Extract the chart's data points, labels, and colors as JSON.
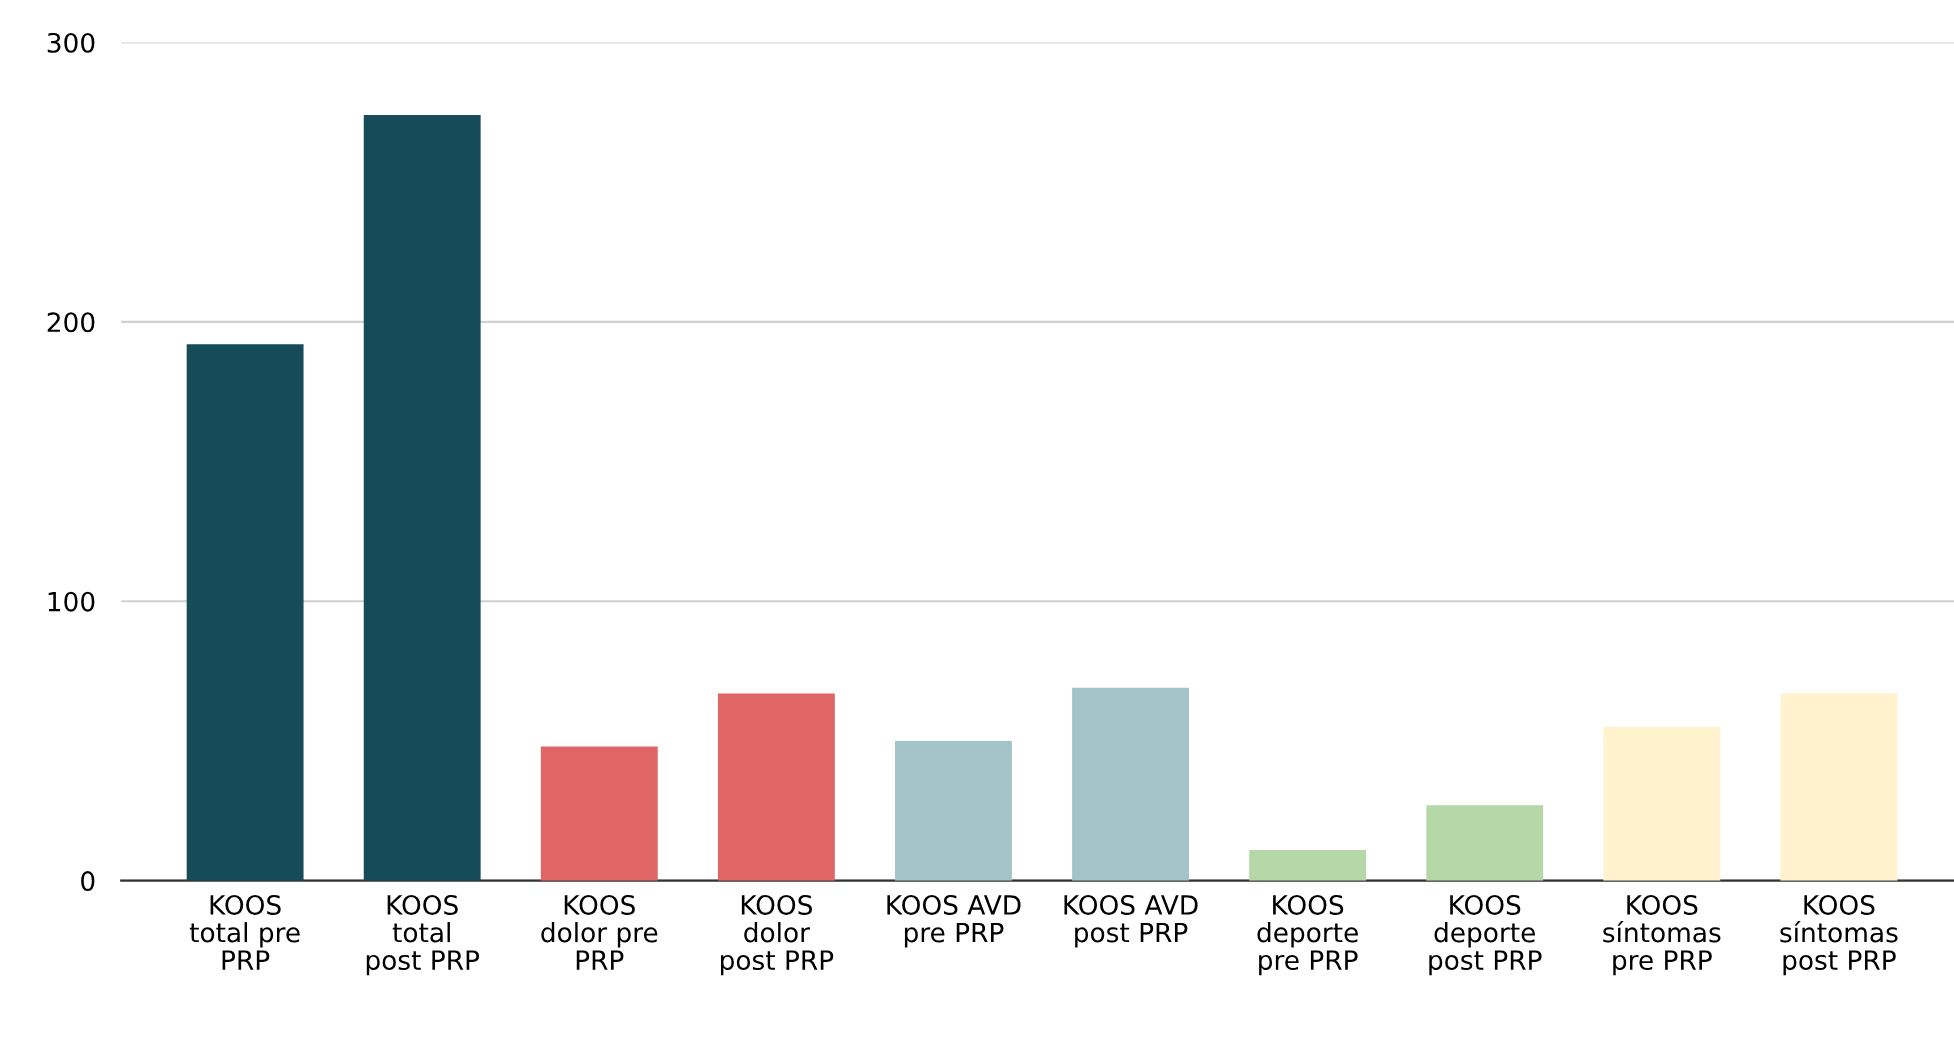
{
  "chart_data": {
    "type": "bar",
    "categories": [
      "KOOS total pre PRP",
      "KOOS total post PRP",
      "KOOS dolor pre PRP",
      "KOOS dolor post PRP",
      "KOOS AVD pre PRP",
      "KOOS AVD post PRP",
      "KOOS deporte pre PRP",
      "KOOS deporte post PRP",
      "KOOS síntomas pre PRP",
      "KOOS síntomas post PRP"
    ],
    "values": [
      192,
      274,
      48,
      67,
      50,
      69,
      11,
      27,
      55,
      67
    ],
    "colors": [
      "#164b5a",
      "#164b5a",
      "#e06666",
      "#e06666",
      "#a2c4c9",
      "#a2c4c9",
      "#b6d7a8",
      "#b6d7a8",
      "#fff2cc",
      "#fff2cc"
    ],
    "ylim": [
      0,
      300
    ],
    "yticks": [
      0,
      100,
      200,
      300
    ],
    "grid": "y",
    "legend": false
  }
}
